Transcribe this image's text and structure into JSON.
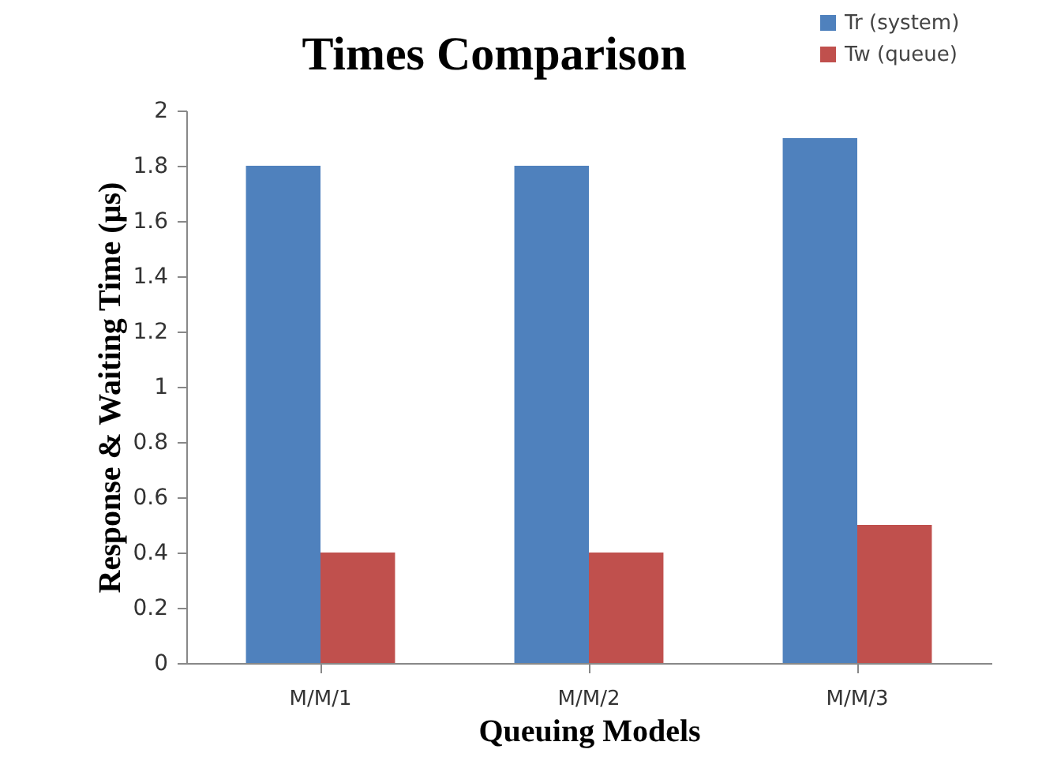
{
  "chart_data": {
    "type": "bar",
    "title": "Times Comparison",
    "xlabel": "Queuing Models",
    "ylabel": "Response & Waiting Time (µs)",
    "categories": [
      "M/M/1",
      "M/M/2",
      "M/M/3"
    ],
    "series": [
      {
        "name": "Tr (system)",
        "color": "#4f81bd",
        "values": [
          1.8,
          1.8,
          1.9
        ]
      },
      {
        "name": "Tw (queue)",
        "color": "#c0504d",
        "values": [
          0.4,
          0.4,
          0.5
        ]
      }
    ],
    "ylim": [
      0,
      2
    ],
    "yticks": [
      0,
      0.2,
      0.4,
      0.6,
      0.8,
      1,
      1.2,
      1.4,
      1.6,
      1.8,
      2
    ],
    "grid": false,
    "legend": "top right"
  }
}
